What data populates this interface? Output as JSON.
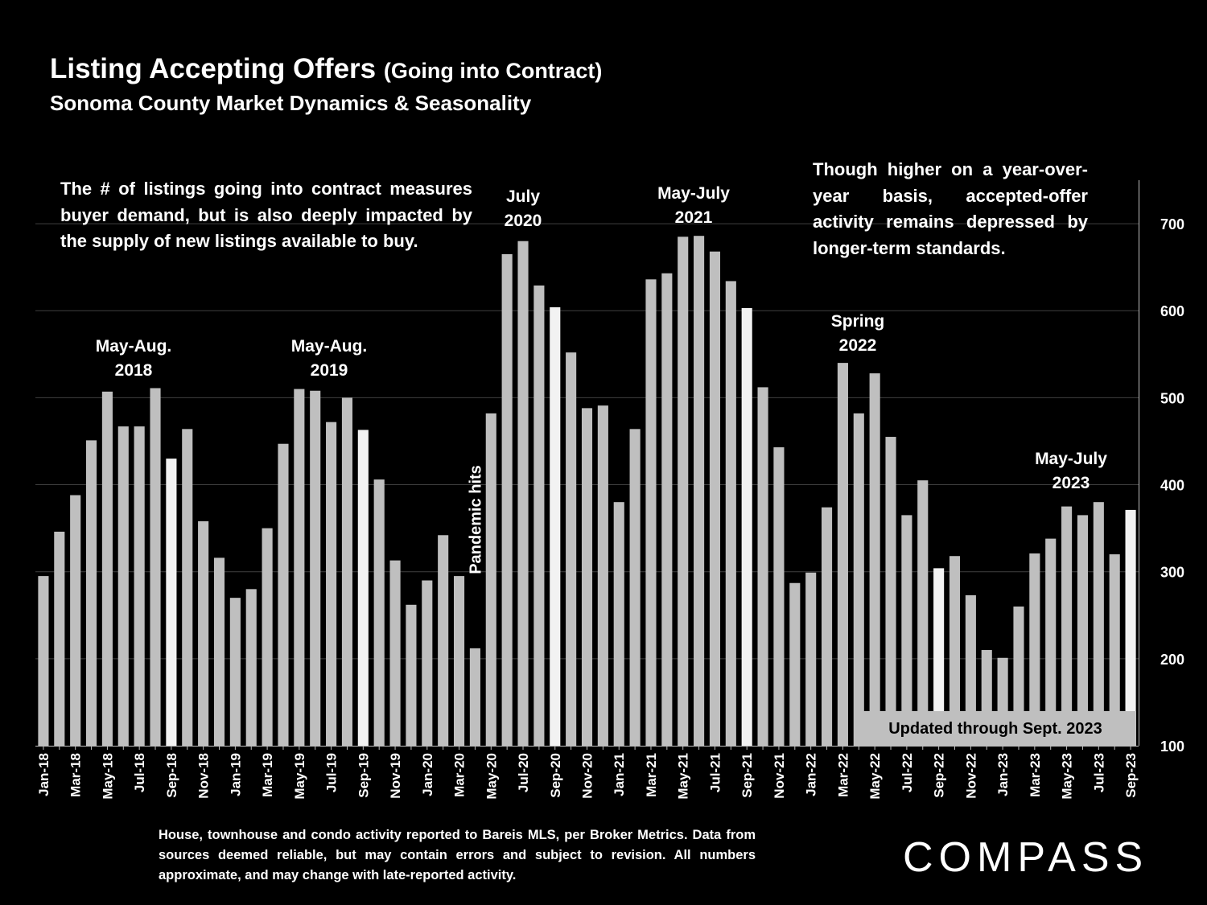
{
  "header": {
    "title": "Listing Accepting Offers",
    "title_paren": "(Going into Contract)",
    "subtitle": "Sonoma County Market Dynamics & Seasonality"
  },
  "notes": {
    "left": "The # of listings going into contract measures buyer demand, but is also deeply impacted by the supply of new listings available to buy.",
    "right": "Though higher on a year-over-year basis, accepted-offer activity remains depressed by longer-term standards."
  },
  "annotations": {
    "may_aug_2018": [
      "May-Aug.",
      "2018"
    ],
    "may_aug_2019": [
      "May-Aug.",
      "2019"
    ],
    "july_2020": [
      "July",
      "2020"
    ],
    "may_july_2021": [
      "May-July",
      "2021"
    ],
    "spring_2022": [
      "Spring",
      "2022"
    ],
    "may_july_2023": [
      "May-July",
      "2023"
    ],
    "pandemic": "Pandemic hits"
  },
  "updated_label": "Updated through Sept. 2023",
  "footer": "House, townhouse and condo activity reported to Bareis MLS, per Broker Metrics. Data from sources deemed reliable, but may contain errors and subject to revision. All numbers approximate, and may change with late-reported activity.",
  "logo": "COMPASS",
  "colors": {
    "background": "#000000",
    "bar": "#bfbfbf",
    "bar_highlight": "#f2f2f2",
    "grid": "#404040",
    "text": "#ffffff"
  },
  "chart_data": {
    "type": "bar",
    "ylim": [
      100,
      750
    ],
    "y_ticks": [
      100,
      200,
      300,
      400,
      500,
      600,
      700
    ],
    "y_axis_side": "right",
    "grid": true,
    "highlight_months": [
      "Sep"
    ],
    "categories": [
      "Jan-18",
      "Feb-18",
      "Mar-18",
      "Apr-18",
      "May-18",
      "Jun-18",
      "Jul-18",
      "Aug-18",
      "Sep-18",
      "Oct-18",
      "Nov-18",
      "Dec-18",
      "Jan-19",
      "Feb-19",
      "Mar-19",
      "Apr-19",
      "May-19",
      "Jun-19",
      "Jul-19",
      "Aug-19",
      "Sep-19",
      "Oct-19",
      "Nov-19",
      "Dec-19",
      "Jan-20",
      "Feb-20",
      "Mar-20",
      "Apr-20",
      "May-20",
      "Jun-20",
      "Jul-20",
      "Aug-20",
      "Sep-20",
      "Oct-20",
      "Nov-20",
      "Dec-20",
      "Jan-21",
      "Feb-21",
      "Mar-21",
      "Apr-21",
      "May-21",
      "Jun-21",
      "Jul-21",
      "Aug-21",
      "Sep-21",
      "Oct-21",
      "Nov-21",
      "Dec-21",
      "Jan-22",
      "Feb-22",
      "Mar-22",
      "Apr-22",
      "May-22",
      "Jun-22",
      "Jul-22",
      "Aug-22",
      "Sep-22",
      "Oct-22",
      "Nov-22",
      "Dec-22",
      "Jan-23",
      "Feb-23",
      "Mar-23",
      "Apr-23",
      "May-23",
      "Jun-23",
      "Jul-23",
      "Aug-23",
      "Sep-23"
    ],
    "x_tick_labels": [
      "Jan-18",
      "Mar-18",
      "May-18",
      "Jul-18",
      "Sep-18",
      "Nov-18",
      "Jan-19",
      "Mar-19",
      "May-19",
      "Jul-19",
      "Sep-19",
      "Nov-19",
      "Jan-20",
      "Mar-20",
      "May-20",
      "Jul-20",
      "Sep-20",
      "Nov-20",
      "Jan-21",
      "Mar-21",
      "May-21",
      "Jul-21",
      "Sep-21",
      "Nov-21",
      "Jan-22",
      "Mar-22",
      "May-22",
      "Jul-22",
      "Sep-22",
      "Nov-22",
      "Jan-23",
      "Mar-23",
      "May-23",
      "Jul-23",
      "Sep-23"
    ],
    "values": [
      295,
      346,
      388,
      451,
      507,
      467,
      467,
      511,
      430,
      464,
      358,
      316,
      270,
      280,
      350,
      447,
      510,
      508,
      472,
      500,
      463,
      406,
      313,
      262,
      290,
      342,
      295,
      212,
      482,
      665,
      680,
      629,
      604,
      552,
      488,
      491,
      380,
      464,
      636,
      643,
      685,
      686,
      668,
      634,
      603,
      512,
      443,
      287,
      299,
      374,
      540,
      482,
      528,
      455,
      365,
      405,
      304,
      318,
      273,
      210,
      201,
      260,
      321,
      338,
      375,
      365,
      380,
      320,
      371
    ]
  }
}
